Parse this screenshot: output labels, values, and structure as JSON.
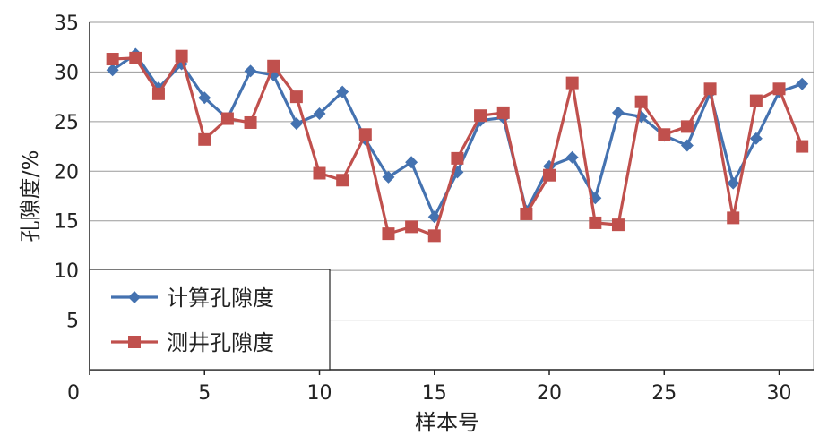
{
  "chart_data": {
    "type": "line",
    "title": "",
    "xlabel": "样本号",
    "ylabel": "孔隙度/%",
    "xlim": [
      0,
      31.5
    ],
    "ylim": [
      0,
      35
    ],
    "xticks": [
      0,
      5,
      10,
      15,
      20,
      25,
      30
    ],
    "yticks": [
      5,
      10,
      15,
      20,
      25,
      30,
      35
    ],
    "grid": "horizontal",
    "legend_position": "bottom-left",
    "x": [
      1,
      2,
      3,
      4,
      5,
      6,
      7,
      8,
      9,
      10,
      11,
      12,
      13,
      14,
      15,
      16,
      17,
      18,
      19,
      20,
      21,
      22,
      23,
      24,
      25,
      26,
      27,
      28,
      29,
      30,
      31
    ],
    "series": [
      {
        "name": "计算孔隙度",
        "color": "#4472b0",
        "marker": "diamond",
        "values": [
          30.2,
          31.8,
          28.4,
          30.8,
          27.4,
          25.3,
          30.1,
          29.7,
          24.8,
          25.8,
          28.0,
          23.2,
          19.4,
          20.9,
          15.4,
          19.9,
          25.1,
          25.4,
          16.0,
          20.5,
          21.4,
          17.3,
          25.9,
          25.5,
          23.6,
          22.6,
          27.9,
          18.8,
          23.3,
          28.0,
          28.8
        ]
      },
      {
        "name": "测井孔隙度",
        "color": "#c0504d",
        "marker": "square",
        "values": [
          31.3,
          31.4,
          27.8,
          31.6,
          23.2,
          25.3,
          24.9,
          30.6,
          27.5,
          19.8,
          19.1,
          23.7,
          13.7,
          14.4,
          13.5,
          21.3,
          25.6,
          25.9,
          15.7,
          19.6,
          28.9,
          14.8,
          14.6,
          27.0,
          23.7,
          24.5,
          28.3,
          15.3,
          27.1,
          28.3,
          22.5
        ]
      }
    ]
  }
}
